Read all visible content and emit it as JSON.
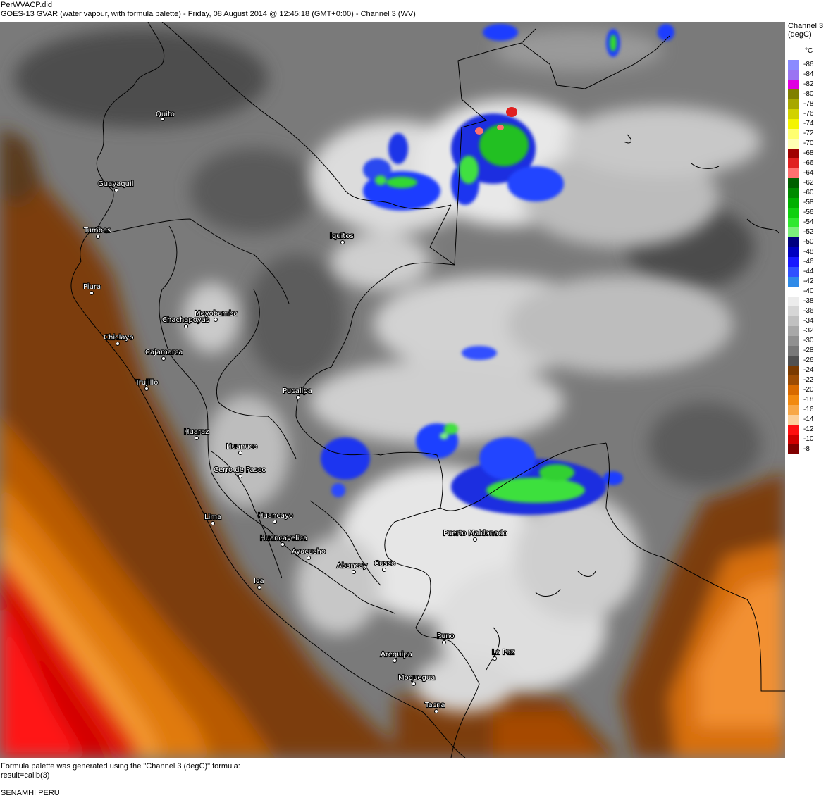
{
  "header": {
    "filename": "PerWVACP.did",
    "description": "GOES-13 GVAR (water vapour, with formula palette) - Friday, 08 August 2014 @ 12:45:18 (GMT+0:00) - Channel 3 (WV)"
  },
  "legend": {
    "title_line1": "Channel 3",
    "title_line2": "(degC)",
    "unit": "°C",
    "entries": [
      {
        "value": "-86",
        "color": "#8a8aff"
      },
      {
        "value": "-84",
        "color": "#9a74f2"
      },
      {
        "value": "-82",
        "color": "#e000e0"
      },
      {
        "value": "-80",
        "color": "#808000"
      },
      {
        "value": "-78",
        "color": "#a8a800"
      },
      {
        "value": "-76",
        "color": "#d2d200"
      },
      {
        "value": "-74",
        "color": "#f4f400"
      },
      {
        "value": "-72",
        "color": "#ffff70"
      },
      {
        "value": "-70",
        "color": "#ffffb4"
      },
      {
        "value": "-68",
        "color": "#a00000"
      },
      {
        "value": "-66",
        "color": "#e02020"
      },
      {
        "value": "-64",
        "color": "#ff7070"
      },
      {
        "value": "-62",
        "color": "#006000"
      },
      {
        "value": "-60",
        "color": "#008a00"
      },
      {
        "value": "-58",
        "color": "#00b000"
      },
      {
        "value": "-56",
        "color": "#10d010"
      },
      {
        "value": "-54",
        "color": "#30e830"
      },
      {
        "value": "-52",
        "color": "#7cf07c"
      },
      {
        "value": "-50",
        "color": "#000080"
      },
      {
        "value": "-48",
        "color": "#0000c0"
      },
      {
        "value": "-46",
        "color": "#1818ff"
      },
      {
        "value": "-44",
        "color": "#3050ff"
      },
      {
        "value": "-42",
        "color": "#2f8ae8"
      },
      {
        "value": "-40",
        "color": "#ffffff"
      },
      {
        "value": "-38",
        "color": "#ececec"
      },
      {
        "value": "-36",
        "color": "#d6d6d6"
      },
      {
        "value": "-34",
        "color": "#c0c0c0"
      },
      {
        "value": "-32",
        "color": "#a8a8a8"
      },
      {
        "value": "-30",
        "color": "#909090"
      },
      {
        "value": "-28",
        "color": "#787878"
      },
      {
        "value": "-26",
        "color": "#505050"
      },
      {
        "value": "-24",
        "color": "#7a3a00"
      },
      {
        "value": "-22",
        "color": "#9c4c04"
      },
      {
        "value": "-20",
        "color": "#d86a00"
      },
      {
        "value": "-18",
        "color": "#f28a10"
      },
      {
        "value": "-16",
        "color": "#f8a848"
      },
      {
        "value": "-14",
        "color": "#fcd09a"
      },
      {
        "value": "-12",
        "color": "#ff1010"
      },
      {
        "value": "-10",
        "color": "#d00000"
      },
      {
        "value": "-8",
        "color": "#800000"
      }
    ]
  },
  "map": {
    "cities": [
      {
        "name": "Quito"
      },
      {
        "name": "Guayaquil"
      },
      {
        "name": "Tumbes"
      },
      {
        "name": "Iquitos"
      },
      {
        "name": "Piura"
      },
      {
        "name": "Moyobamba"
      },
      {
        "name": "Chachapoyas"
      },
      {
        "name": "Chiclayo"
      },
      {
        "name": "Cajamarca"
      },
      {
        "name": "Trujillo"
      },
      {
        "name": "Pucallpa"
      },
      {
        "name": "Huaraz"
      },
      {
        "name": "Huanuco"
      },
      {
        "name": "Cerro de Pasco"
      },
      {
        "name": "Lima"
      },
      {
        "name": "Huancayo"
      },
      {
        "name": "Huancavelica"
      },
      {
        "name": "Ayacucho"
      },
      {
        "name": "Abancay"
      },
      {
        "name": "Cusco"
      },
      {
        "name": "Puerto Maldonado"
      },
      {
        "name": "Ica"
      },
      {
        "name": "Puno"
      },
      {
        "name": "La Paz"
      },
      {
        "name": "Arequipa"
      },
      {
        "name": "Moquegua"
      },
      {
        "name": "Tacna"
      }
    ]
  },
  "footer": {
    "line1": "Formula palette was generated using the \"Channel 3 (degC)\" formula:",
    "line2": "result=calib(3)",
    "credit": "SENAMHI PERU"
  }
}
